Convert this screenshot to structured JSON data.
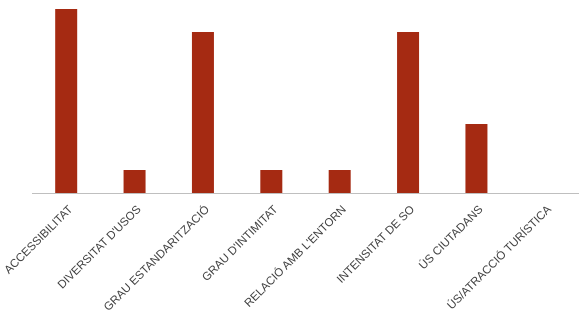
{
  "chart_data": {
    "type": "bar",
    "categories": [
      "ACCESSIBILITAT",
      "DIVERSITAT D'USOS",
      "GRAU ESTANDARITZACIÓ",
      "GRAU D'INTIMITAT",
      "RELACIÓ AMB L'ENTORN",
      "INTENSITAT DE SO",
      "ÚS CIUTADANS",
      "ÚS/ATRACCIÓ TURÍSTICA"
    ],
    "values": [
      8,
      1,
      7,
      1,
      1,
      7,
      3,
      0
    ],
    "ylim": [
      0,
      8
    ],
    "grid": false,
    "legend": "none",
    "colors": {
      "bar": "#A52A12",
      "axis": "#BFBFBF",
      "label": "#404040"
    }
  }
}
